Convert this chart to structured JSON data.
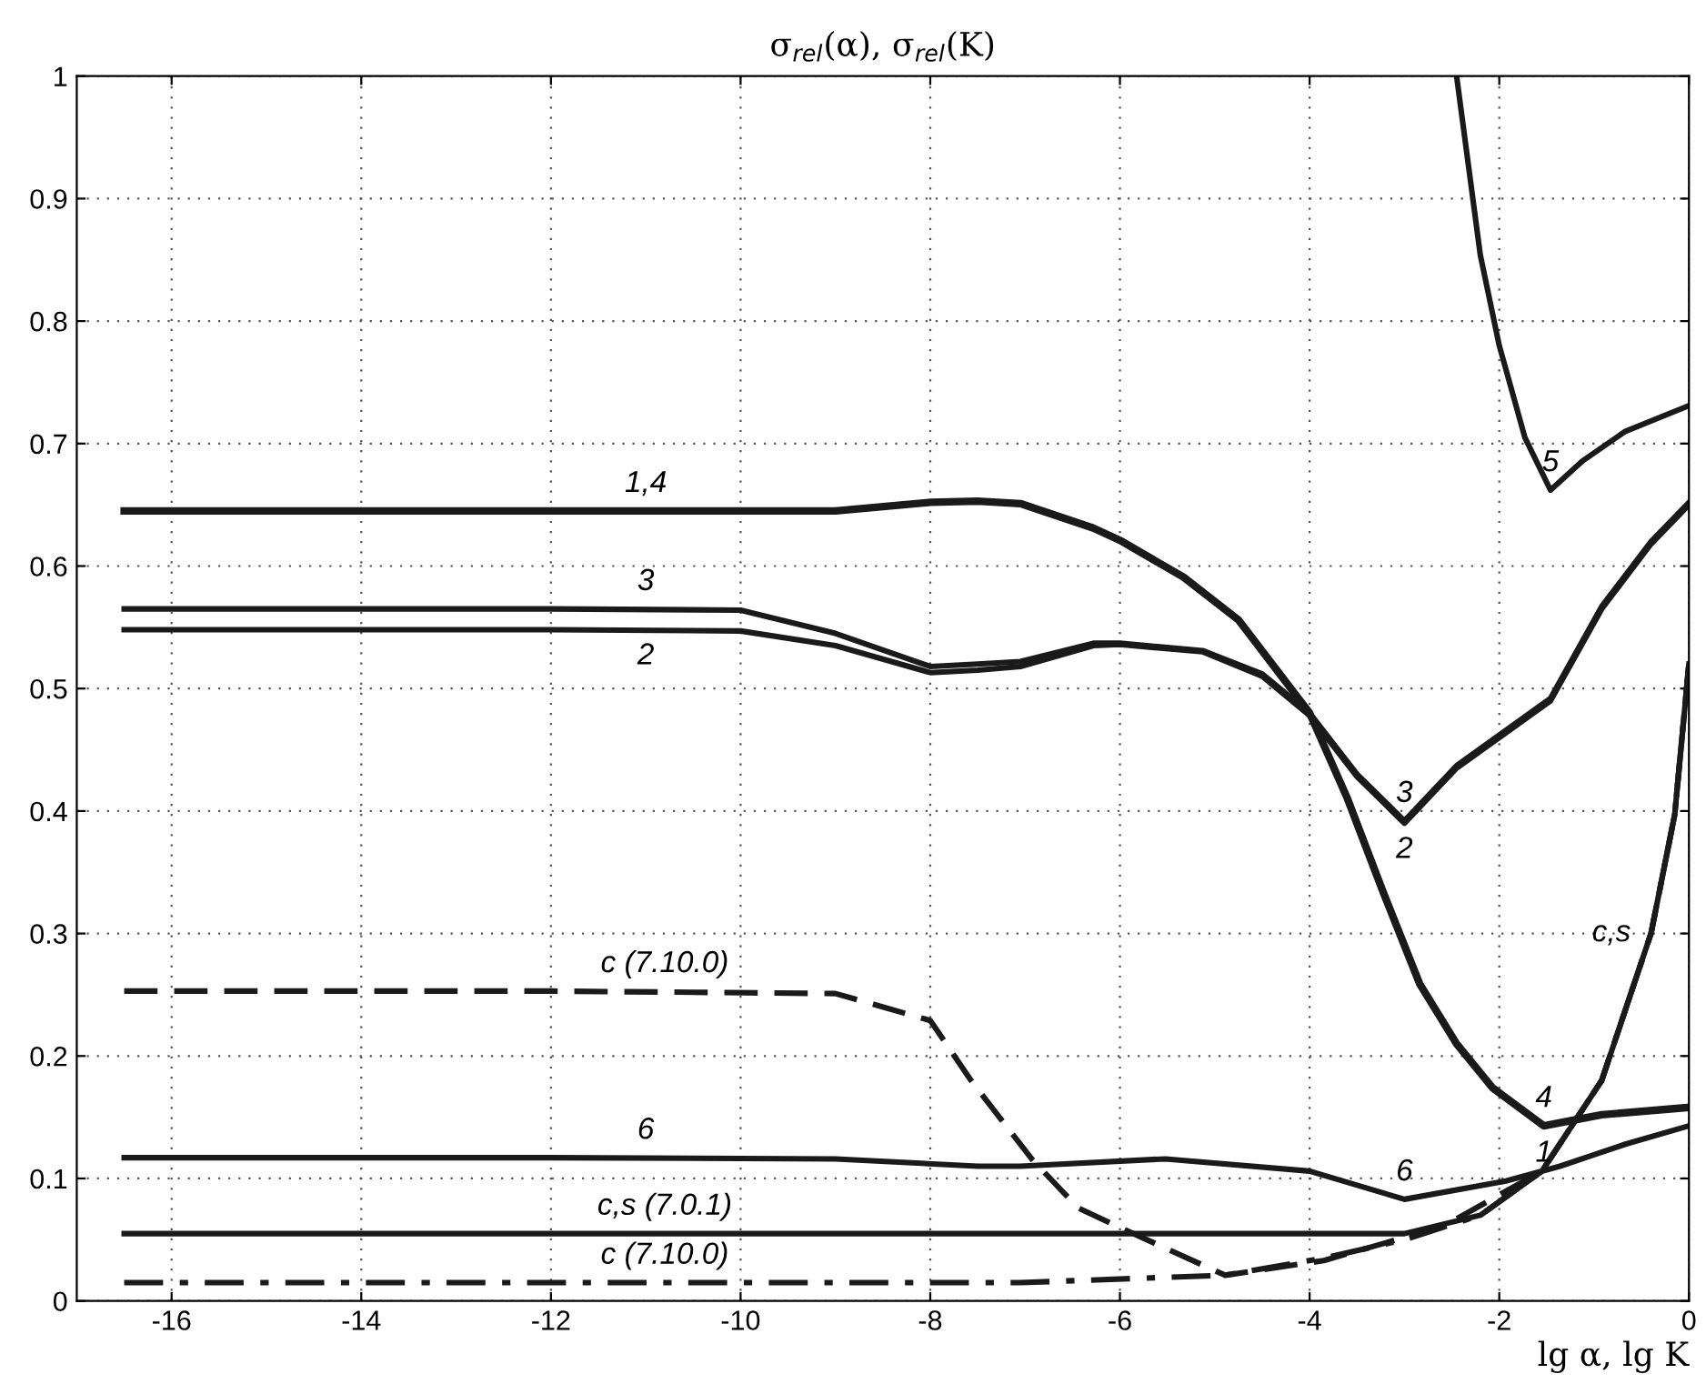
{
  "chart_data": {
    "type": "line",
    "title": "σ$_{rel}$(α), σ$_{rel}$(K)",
    "xlabel": "lg α, lg K",
    "xlim": [
      -17,
      0
    ],
    "xticks": [
      -16,
      -14,
      -12,
      -10,
      -8,
      -6,
      -4,
      -2,
      0
    ],
    "ylim": [
      0,
      1
    ],
    "yticks": [
      0,
      0.1,
      0.2,
      0.3,
      0.4,
      0.5,
      0.6,
      0.7,
      0.8,
      0.9,
      1
    ],
    "grid": true,
    "legend": false,
    "marker": "none",
    "series": [
      {
        "color": "#1a1a1a",
        "line_style": "solid",
        "x": [
          -16.5,
          -12,
          -9,
          -8,
          -7.5,
          -7.05,
          -6.28,
          -6,
          -5.33,
          -4.75,
          -4,
          -3.6,
          -3.22,
          -2.84,
          -2.45,
          -2.07,
          -1.53,
          -0.92,
          0
        ],
        "values": [
          0.645,
          0.645,
          0.645,
          0.652,
          0.653,
          0.651,
          0.631,
          0.621,
          0.591,
          0.556,
          0.48,
          0.41,
          0.333,
          0.259,
          0.21,
          0.174,
          0.143,
          0.152,
          0.158
        ]
      },
      {
        "color": "#1a1a1a",
        "line_style": "solid",
        "x": [
          -16.5,
          -12,
          -10,
          -9,
          -8,
          -7.5,
          -7.05,
          -6.28,
          -6,
          -5.13,
          -4.5,
          -4,
          -3.5,
          -3,
          -2.45,
          -1.46,
          -0.92,
          -0.4,
          0
        ],
        "values": [
          0.565,
          0.565,
          0.564,
          0.545,
          0.518,
          0.52,
          0.522,
          0.537,
          0.537,
          0.531,
          0.512,
          0.48,
          0.43,
          0.392,
          0.437,
          0.492,
          0.567,
          0.62,
          0.652
        ]
      },
      {
        "color": "#1a1a1a",
        "line_style": "solid",
        "x": [
          -16.5,
          -12,
          -10,
          -9,
          -8,
          -7.5,
          -7.05,
          -6.28,
          -6,
          -5.13,
          -4.5,
          -4,
          -3.5,
          -3,
          -2.45,
          -1.46,
          -0.92,
          -0.4,
          0
        ],
        "values": [
          0.548,
          0.548,
          0.547,
          0.535,
          0.513,
          0.515,
          0.518,
          0.535,
          0.536,
          0.53,
          0.51,
          0.478,
          0.428,
          0.39,
          0.435,
          0.49,
          0.565,
          0.618,
          0.65
        ]
      },
      {
        "color": "#1a1a1a",
        "line_style": "solid",
        "x": [
          -2.45,
          -2.2,
          -2.0,
          -1.73,
          -1.46,
          -1.12,
          -0.67,
          0
        ],
        "values": [
          1.0,
          0.854,
          0.78,
          0.705,
          0.662,
          0.686,
          0.71,
          0.731
        ]
      },
      {
        "color": "#1a1a1a",
        "line_style": "solid",
        "x": [
          -16.5,
          -12,
          -9,
          -7.5,
          -7.05,
          -5.52,
          -4,
          -3,
          -1.93,
          -1.36,
          -0.67,
          0
        ],
        "values": [
          0.117,
          0.117,
          0.116,
          0.11,
          0.11,
          0.116,
          0.106,
          0.083,
          0.098,
          0.11,
          0.128,
          0.143
        ]
      },
      {
        "color": "#1a1a1a",
        "line_style": "dashed",
        "x": [
          -16.5,
          -12,
          -9,
          -8,
          -7.57,
          -6.92,
          -6.44,
          -6.03,
          -4.89,
          -3.85,
          -2.59,
          -1.55,
          -0.92,
          -0.4,
          -0.15,
          0
        ],
        "values": [
          0.253,
          0.253,
          0.251,
          0.229,
          0.18,
          0.115,
          0.076,
          0.061,
          0.021,
          0.033,
          0.061,
          0.106,
          0.18,
          0.3,
          0.397,
          0.52
        ]
      },
      {
        "color": "#1a1a1a",
        "line_style": "solid",
        "x": [
          -16.5,
          -12,
          -6,
          -3,
          -2.2,
          -1.55,
          -0.92,
          -0.4,
          -0.15,
          0
        ],
        "values": [
          0.055,
          0.055,
          0.055,
          0.055,
          0.07,
          0.106,
          0.18,
          0.3,
          0.397,
          0.52
        ]
      },
      {
        "color": "#1a1a1a",
        "line_style": "dashdot",
        "x": [
          -16.5,
          -12,
          -7.05,
          -4.89,
          -3.85,
          -3,
          -2.2,
          -1.55,
          -0.92,
          -0.4,
          -0.15,
          0
        ],
        "values": [
          0.015,
          0.015,
          0.015,
          0.021,
          0.035,
          0.05,
          0.07,
          0.106,
          0.18,
          0.3,
          0.397,
          0.52
        ]
      }
    ],
    "annotations": [
      {
        "text": "1,4",
        "x": -11,
        "y": 0.645
      },
      {
        "text": "3",
        "x": -11,
        "y": 0.565
      },
      {
        "text": "2",
        "x": -11,
        "y": 0.548
      },
      {
        "text": "5",
        "x": -1.46,
        "y": 0.662
      },
      {
        "text": "3",
        "x": -3,
        "y": 0.392
      },
      {
        "text": "2",
        "x": -3,
        "y": 0.39
      },
      {
        "text": "4",
        "x": -1.53,
        "y": 0.143
      },
      {
        "text": "1",
        "x": -1.53,
        "y": 0.142
      },
      {
        "text": "c,s",
        "x": -0.4,
        "y": 0.3
      },
      {
        "text": "6",
        "x": -11,
        "y": 0.117
      },
      {
        "text": "6",
        "x": -3,
        "y": 0.083
      },
      {
        "text": "c (7.10.0)",
        "x": -10.8,
        "y": 0.253
      },
      {
        "text": "c,s (7.0.1)",
        "x": -10.8,
        "y": 0.055
      },
      {
        "text": "c (7.10.0)",
        "x": -10.8,
        "y": 0.015
      }
    ]
  }
}
